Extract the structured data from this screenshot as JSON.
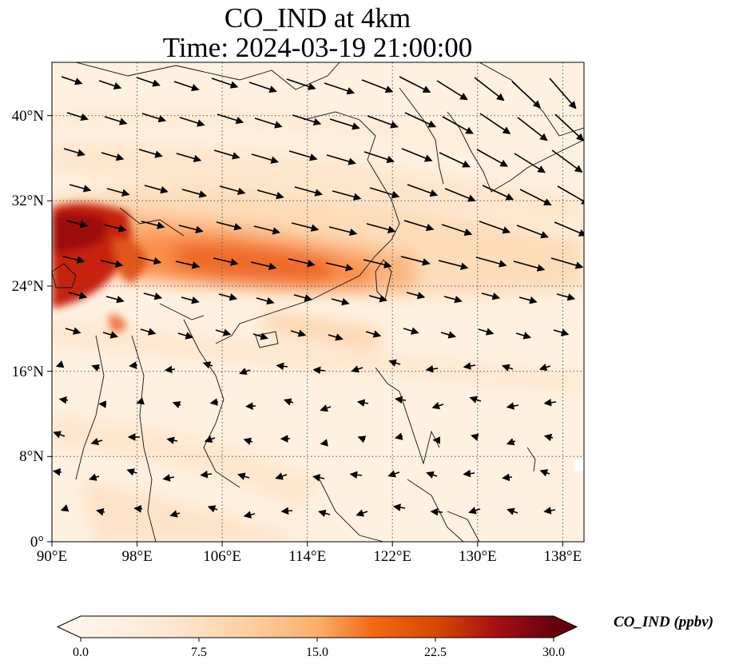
{
  "title": {
    "line1": "CO_IND at 4km",
    "line2": "Time: 2024-03-19 21:00:00"
  },
  "map": {
    "lon_ticks": [
      "90°E",
      "98°E",
      "106°E",
      "114°E",
      "122°E",
      "130°E",
      "138°E"
    ],
    "lat_ticks": [
      "0°",
      "8°N",
      "16°N",
      "24°N",
      "32°N",
      "40°N"
    ],
    "lon_range": [
      90,
      140
    ],
    "lat_range": [
      0,
      45
    ],
    "gridlines": "dotted"
  },
  "colorbar": {
    "label": "CO_IND (ppbv)",
    "ticks": [
      "0.0",
      "7.5",
      "15.0",
      "22.5",
      "30.0"
    ],
    "colormap": [
      "#fff5eb",
      "#fdd49e",
      "#fdae6b",
      "#f16913",
      "#d94801",
      "#a50f15",
      "#67000d"
    ],
    "extend": "both"
  }
}
